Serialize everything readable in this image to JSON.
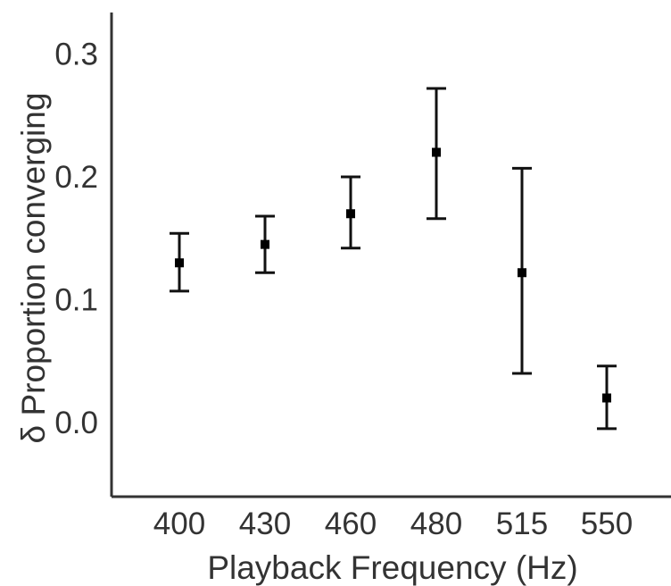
{
  "chart_data": {
    "type": "scatter",
    "title": "",
    "xlabel": "Playback Frequency (Hz)",
    "ylabel": "δ Proportion converging",
    "categories": [
      "400",
      "430",
      "460",
      "480",
      "515",
      "550"
    ],
    "series": [
      {
        "values": [
          0.13,
          0.145,
          0.17,
          0.22,
          0.122,
          0.02
        ],
        "error_low": [
          0.107,
          0.122,
          0.142,
          0.166,
          0.04,
          -0.005
        ],
        "error_high": [
          0.154,
          0.168,
          0.2,
          0.272,
          0.207,
          0.046
        ]
      }
    ],
    "ylim": [
      -0.06,
      0.33
    ],
    "yticks": [
      0.0,
      0.1,
      0.2,
      0.3
    ],
    "ytick_labels": [
      "0.0",
      "0.1",
      "0.2",
      "0.3"
    ],
    "grid": false,
    "legend": "none",
    "colors": {
      "point": "#000000",
      "errorbar": "#111111",
      "axis": "#333333"
    }
  }
}
